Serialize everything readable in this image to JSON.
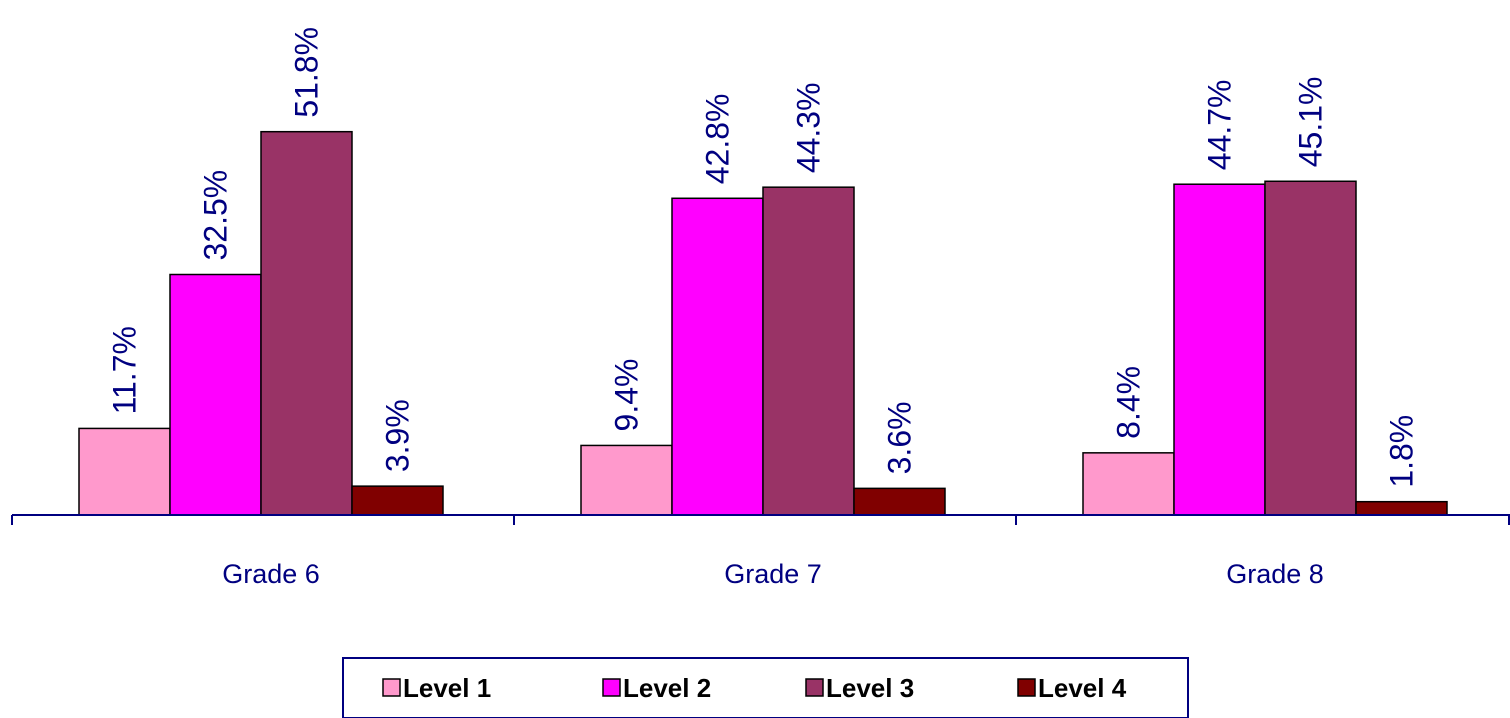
{
  "chart_data": {
    "type": "bar",
    "categories": [
      "Grade 6",
      "Grade 7",
      "Grade 8"
    ],
    "series": [
      {
        "name": "Level 1",
        "values": [
          11.7,
          9.4,
          8.4
        ],
        "color": "#ff99cc"
      },
      {
        "name": "Level 2",
        "values": [
          32.5,
          42.8,
          44.7
        ],
        "color": "#ff00ff"
      },
      {
        "name": "Level 3",
        "values": [
          51.8,
          44.3,
          45.1
        ],
        "color": "#993366"
      },
      {
        "name": "Level 4",
        "values": [
          3.9,
          3.6,
          1.8
        ],
        "color": "#800000"
      }
    ],
    "value_labels": [
      [
        "11.7%",
        "9.4%",
        "8.4%"
      ],
      [
        "32.5%",
        "42.8%",
        "44.7%"
      ],
      [
        "51.8%",
        "44.3%",
        "45.1%"
      ],
      [
        "3.9%",
        "3.6%",
        "1.8%"
      ]
    ],
    "title": "",
    "xlabel": "",
    "ylabel": "",
    "ylim": [
      0,
      70
    ],
    "grid": false,
    "legend_position": "bottom",
    "colors": {
      "axis": "#000080",
      "value_label": "#000080",
      "category_label": "#000080",
      "bar_outline": "#000000",
      "legend_border": "#000080",
      "legend_text": "#000000"
    }
  }
}
